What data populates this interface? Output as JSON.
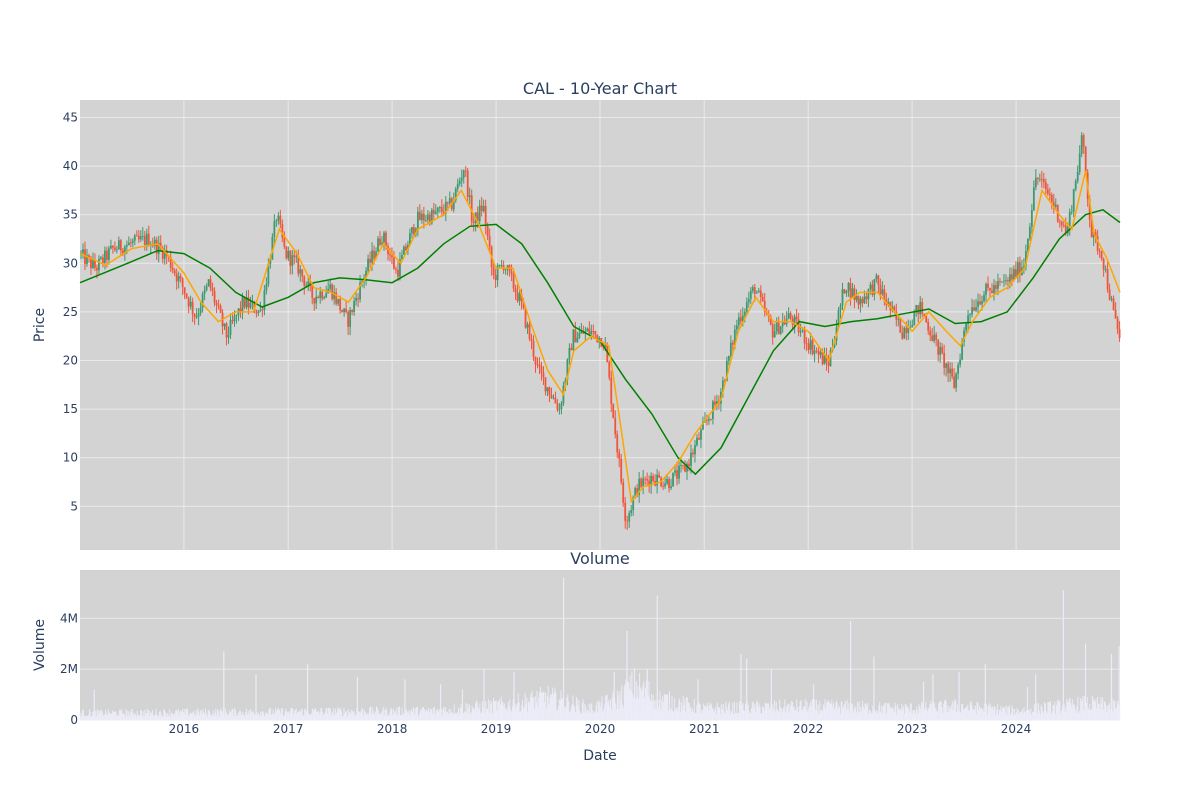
{
  "chart_data": [
    {
      "type": "candlestick",
      "title": "CAL - 10-Year Chart",
      "ylabel": "Price",
      "xlabel": "",
      "x_range": [
        "2015-01-01",
        "2024-12-31"
      ],
      "ylim": [
        0.5,
        46.8
      ],
      "yticks": [
        5,
        10,
        15,
        20,
        25,
        30,
        35,
        40,
        45
      ],
      "xticks": [
        "2016",
        "2017",
        "2018",
        "2019",
        "2020",
        "2021",
        "2022",
        "2023",
        "2024"
      ],
      "grid": true,
      "colors": {
        "background": "#d3d3d3",
        "grid": "#e9e9e9",
        "up": "#3d9970",
        "down": "#ef553b",
        "ma_fast": "#ffa500",
        "ma_slow": "#008000"
      },
      "price_path": [
        [
          "2015-01-01",
          31
        ],
        [
          "2015-03-01",
          29.5
        ],
        [
          "2015-05-01",
          31.5
        ],
        [
          "2015-07-01",
          32
        ],
        [
          "2015-09-01",
          32.5
        ],
        [
          "2015-11-01",
          31
        ],
        [
          "2016-01-01",
          27.5
        ],
        [
          "2016-02-15",
          24.5
        ],
        [
          "2016-04-01",
          28
        ],
        [
          "2016-06-01",
          22.5
        ],
        [
          "2016-08-01",
          26
        ],
        [
          "2016-10-01",
          25
        ],
        [
          "2016-11-25",
          35
        ],
        [
          "2016-12-25",
          31
        ],
        [
          "2017-02-01",
          30
        ],
        [
          "2017-04-01",
          26.5
        ],
        [
          "2017-06-01",
          27.5
        ],
        [
          "2017-08-01",
          24
        ],
        [
          "2017-10-01",
          29
        ],
        [
          "2017-12-01",
          33
        ],
        [
          "2018-01-20",
          29
        ],
        [
          "2018-04-01",
          34.5
        ],
        [
          "2018-06-01",
          35
        ],
        [
          "2018-08-01",
          36
        ],
        [
          "2018-09-15",
          40
        ],
        [
          "2018-10-15",
          34
        ],
        [
          "2018-11-20",
          36
        ],
        [
          "2018-12-25",
          28.5
        ],
        [
          "2019-02-01",
          30
        ],
        [
          "2019-04-01",
          26
        ],
        [
          "2019-06-01",
          19
        ],
        [
          "2019-08-15",
          15
        ],
        [
          "2019-10-01",
          22.5
        ],
        [
          "2019-12-01",
          23
        ],
        [
          "2020-01-20",
          22
        ],
        [
          "2020-03-01",
          12
        ],
        [
          "2020-04-05",
          3.5
        ],
        [
          "2020-05-15",
          7
        ],
        [
          "2020-07-01",
          8
        ],
        [
          "2020-09-01",
          7.5
        ],
        [
          "2020-11-01",
          9
        ],
        [
          "2021-01-01",
          13
        ],
        [
          "2021-03-01",
          16.5
        ],
        [
          "2021-05-01",
          24
        ],
        [
          "2021-07-01",
          27.5
        ],
        [
          "2021-09-01",
          23
        ],
        [
          "2021-11-01",
          24.5
        ],
        [
          "2022-01-01",
          22
        ],
        [
          "2022-03-15",
          19.5
        ],
        [
          "2022-05-15",
          28
        ],
        [
          "2022-07-01",
          26
        ],
        [
          "2022-09-01",
          28
        ],
        [
          "2022-10-15",
          25.5
        ],
        [
          "2022-12-01",
          23
        ],
        [
          "2023-02-01",
          25.5
        ],
        [
          "2023-04-01",
          21.5
        ],
        [
          "2023-06-01",
          17.5
        ],
        [
          "2023-07-20",
          25
        ],
        [
          "2023-09-15",
          27
        ],
        [
          "2023-12-01",
          28
        ],
        [
          "2024-02-01",
          30
        ],
        [
          "2024-03-15",
          39
        ],
        [
          "2024-05-01",
          37
        ],
        [
          "2024-07-01",
          33
        ],
        [
          "2024-08-25",
          43
        ],
        [
          "2024-09-25",
          33
        ],
        [
          "2024-11-01",
          31
        ],
        [
          "2024-12-10",
          25
        ],
        [
          "2024-12-31",
          22.5
        ]
      ],
      "ma_fast_path": [
        [
          "2015-01-01",
          31
        ],
        [
          "2015-04-01",
          29.8
        ],
        [
          "2015-07-01",
          31.5
        ],
        [
          "2015-10-01",
          32
        ],
        [
          "2016-01-01",
          29
        ],
        [
          "2016-03-01",
          26
        ],
        [
          "2016-05-01",
          24
        ],
        [
          "2016-07-01",
          25
        ],
        [
          "2016-09-01",
          25
        ],
        [
          "2016-12-01",
          33.5
        ],
        [
          "2017-02-01",
          31
        ],
        [
          "2017-04-01",
          27.5
        ],
        [
          "2017-06-01",
          27
        ],
        [
          "2017-08-01",
          26
        ],
        [
          "2017-10-01",
          28.5
        ],
        [
          "2017-12-01",
          32
        ],
        [
          "2018-02-01",
          30
        ],
        [
          "2018-04-01",
          33.5
        ],
        [
          "2018-07-01",
          35
        ],
        [
          "2018-09-01",
          37.5
        ],
        [
          "2018-11-01",
          34
        ],
        [
          "2019-01-01",
          29.5
        ],
        [
          "2019-03-01",
          29.5
        ],
        [
          "2019-05-01",
          24
        ],
        [
          "2019-07-01",
          19
        ],
        [
          "2019-08-25",
          16.5
        ],
        [
          "2019-10-01",
          21
        ],
        [
          "2019-12-01",
          22.5
        ],
        [
          "2020-02-01",
          21.5
        ],
        [
          "2020-03-20",
          12
        ],
        [
          "2020-04-20",
          5.5
        ],
        [
          "2020-06-01",
          7
        ],
        [
          "2020-08-01",
          7.5
        ],
        [
          "2020-10-01",
          9.5
        ],
        [
          "2020-12-01",
          12.5
        ],
        [
          "2021-03-01",
          16
        ],
        [
          "2021-05-01",
          23
        ],
        [
          "2021-07-01",
          26.5
        ],
        [
          "2021-09-01",
          24
        ],
        [
          "2021-11-01",
          24
        ],
        [
          "2022-01-01",
          23
        ],
        [
          "2022-03-15",
          20
        ],
        [
          "2022-05-15",
          26
        ],
        [
          "2022-07-01",
          27
        ],
        [
          "2022-09-01",
          27
        ],
        [
          "2022-11-01",
          25
        ],
        [
          "2023-01-01",
          23
        ],
        [
          "2023-03-01",
          25
        ],
        [
          "2023-05-01",
          23
        ],
        [
          "2023-06-20",
          21.5
        ],
        [
          "2023-08-01",
          24
        ],
        [
          "2023-10-01",
          26.5
        ],
        [
          "2023-12-01",
          27.5
        ],
        [
          "2024-02-01",
          29.5
        ],
        [
          "2024-04-01",
          37.5
        ],
        [
          "2024-06-01",
          35
        ],
        [
          "2024-07-15",
          33.5
        ],
        [
          "2024-09-01",
          39.5
        ],
        [
          "2024-10-01",
          33
        ],
        [
          "2024-11-15",
          30.5
        ],
        [
          "2024-12-31",
          27
        ]
      ],
      "ma_slow_path": [
        [
          "2015-01-01",
          28
        ],
        [
          "2015-06-01",
          29.8
        ],
        [
          "2015-10-01",
          31.3
        ],
        [
          "2016-01-01",
          31
        ],
        [
          "2016-04-01",
          29.5
        ],
        [
          "2016-07-01",
          27
        ],
        [
          "2016-10-01",
          25.5
        ],
        [
          "2017-01-01",
          26.5
        ],
        [
          "2017-04-01",
          28
        ],
        [
          "2017-07-01",
          28.5
        ],
        [
          "2017-10-01",
          28.3
        ],
        [
          "2018-01-01",
          28
        ],
        [
          "2018-04-01",
          29.5
        ],
        [
          "2018-07-01",
          32
        ],
        [
          "2018-10-01",
          33.8
        ],
        [
          "2019-01-01",
          34
        ],
        [
          "2019-04-01",
          32
        ],
        [
          "2019-07-01",
          28
        ],
        [
          "2019-10-01",
          23.5
        ],
        [
          "2020-01-01",
          22
        ],
        [
          "2020-04-01",
          18
        ],
        [
          "2020-07-01",
          14.5
        ],
        [
          "2020-10-01",
          10
        ],
        [
          "2020-12-01",
          8.3
        ],
        [
          "2021-03-01",
          11
        ],
        [
          "2021-06-01",
          16
        ],
        [
          "2021-09-01",
          21
        ],
        [
          "2021-12-01",
          24
        ],
        [
          "2022-03-01",
          23.5
        ],
        [
          "2022-06-01",
          24
        ],
        [
          "2022-09-01",
          24.3
        ],
        [
          "2022-12-01",
          24.8
        ],
        [
          "2023-03-01",
          25.3
        ],
        [
          "2023-06-01",
          23.8
        ],
        [
          "2023-09-01",
          24
        ],
        [
          "2023-12-01",
          25
        ],
        [
          "2024-03-01",
          28.5
        ],
        [
          "2024-06-01",
          32.5
        ],
        [
          "2024-09-01",
          35
        ],
        [
          "2024-11-01",
          35.5
        ],
        [
          "2024-12-31",
          34.2
        ]
      ]
    },
    {
      "type": "bar",
      "title": "Volume",
      "ylabel": "Volume",
      "xlabel": "Date",
      "ylim": [
        0,
        5900000
      ],
      "yticks": [
        0,
        2000000,
        4000000
      ],
      "ytick_labels": [
        "0",
        "2M",
        "4M"
      ],
      "xticks": [
        "2016",
        "2017",
        "2018",
        "2019",
        "2020",
        "2021",
        "2022",
        "2023",
        "2024"
      ],
      "grid": true,
      "colors": {
        "background": "#d3d3d3",
        "grid": "#e9e9e9",
        "bar": "#ececf8"
      },
      "base_volume_path": [
        [
          "2015-01-01",
          300000
        ],
        [
          "2018-06-01",
          400000
        ],
        [
          "2019-03-01",
          700000
        ],
        [
          "2019-07-01",
          1000000
        ],
        [
          "2019-12-01",
          500000
        ],
        [
          "2020-03-01",
          900000
        ],
        [
          "2020-05-01",
          1500000
        ],
        [
          "2020-08-01",
          900000
        ],
        [
          "2021-01-01",
          500000
        ],
        [
          "2022-01-01",
          600000
        ],
        [
          "2023-01-01",
          500000
        ],
        [
          "2023-06-01",
          600000
        ],
        [
          "2024-01-01",
          400000
        ],
        [
          "2024-09-01",
          700000
        ],
        [
          "2024-12-31",
          600000
        ]
      ],
      "spikes": [
        [
          "2015-02-20",
          1200000
        ],
        [
          "2016-05-20",
          2700000
        ],
        [
          "2016-09-10",
          1800000
        ],
        [
          "2017-03-10",
          2200000
        ],
        [
          "2017-09-01",
          1700000
        ],
        [
          "2018-02-15",
          1600000
        ],
        [
          "2018-06-20",
          1400000
        ],
        [
          "2018-09-05",
          1200000
        ],
        [
          "2018-11-20",
          2000000
        ],
        [
          "2019-03-05",
          1900000
        ],
        [
          "2019-08-26",
          5600000
        ],
        [
          "2020-02-20",
          1900000
        ],
        [
          "2020-04-05",
          3500000
        ],
        [
          "2020-06-15",
          2000000
        ],
        [
          "2020-07-20",
          4900000
        ],
        [
          "2020-12-10",
          1600000
        ],
        [
          "2021-05-10",
          2600000
        ],
        [
          "2021-05-30",
          2400000
        ],
        [
          "2021-08-25",
          2000000
        ],
        [
          "2022-01-20",
          1400000
        ],
        [
          "2022-05-30",
          3900000
        ],
        [
          "2022-08-20",
          2500000
        ],
        [
          "2023-02-10",
          1500000
        ],
        [
          "2023-03-15",
          1800000
        ],
        [
          "2023-06-15",
          1900000
        ],
        [
          "2023-09-15",
          2200000
        ],
        [
          "2024-02-10",
          1300000
        ],
        [
          "2024-03-10",
          1800000
        ],
        [
          "2024-06-15",
          5100000
        ],
        [
          "2024-09-01",
          3000000
        ],
        [
          "2024-12-01",
          2600000
        ],
        [
          "2024-12-28",
          2900000
        ]
      ]
    }
  ]
}
